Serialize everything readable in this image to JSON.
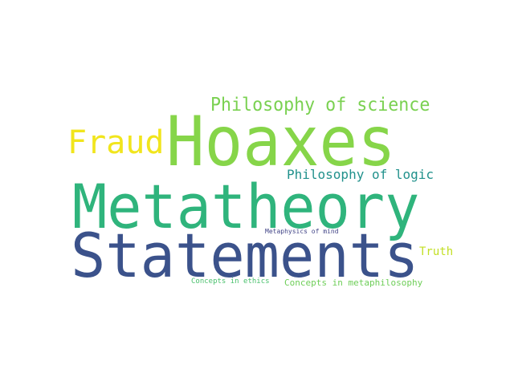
{
  "words": [
    {
      "text": "Hoaxes",
      "color": "#86d549"
    },
    {
      "text": "Metatheory",
      "color": "#2fb47c"
    },
    {
      "text": "Statements",
      "color": "#3b528b"
    },
    {
      "text": "Fraud",
      "color": "#f1e51d"
    },
    {
      "text": "Philosophy of science",
      "color": "#7ad151"
    },
    {
      "text": "Philosophy of logic",
      "color": "#21918c"
    },
    {
      "text": "Metaphysics of mind",
      "color": "#414487"
    },
    {
      "text": "Truth",
      "color": "#c2df23"
    },
    {
      "text": "Concepts in ethics",
      "color": "#4ac16d"
    },
    {
      "text": "Concepts in metaphilosophy",
      "color": "#6ece58"
    }
  ]
}
